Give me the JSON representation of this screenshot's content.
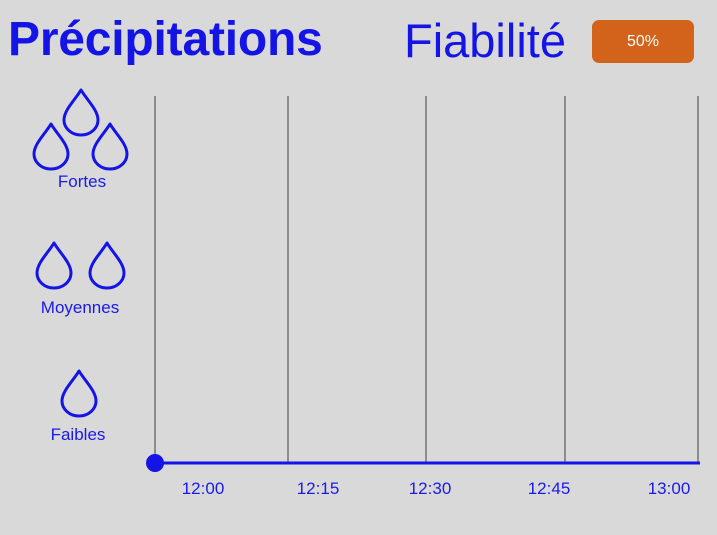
{
  "header": {
    "title": "Précipitations",
    "reliability_label": "Fiabilité",
    "reliability_value": "50%",
    "reliability_percent": 50,
    "badge_color": "#d3631b"
  },
  "colors": {
    "accent": "#1414e6",
    "background": "#d9d9d9",
    "gridline": "#8c8c8c"
  },
  "levels": [
    {
      "label": "Fortes",
      "drops": 3,
      "icon": "raindrop-icon"
    },
    {
      "label": "Moyennes",
      "drops": 2,
      "icon": "raindrop-icon"
    },
    {
      "label": "Faibles",
      "drops": 1,
      "icon": "raindrop-icon"
    }
  ],
  "chart_data": {
    "type": "line",
    "title": "",
    "xlabel": "",
    "ylabel": "",
    "x_ticks": [
      "12:00",
      "12:15",
      "12:30",
      "12:45",
      "13:00"
    ],
    "y_categories": [
      "Faibles",
      "Moyennes",
      "Fortes"
    ],
    "series": [
      {
        "points": [
          {
            "x": "12:00",
            "y": 0
          }
        ]
      }
    ],
    "grid": true
  }
}
